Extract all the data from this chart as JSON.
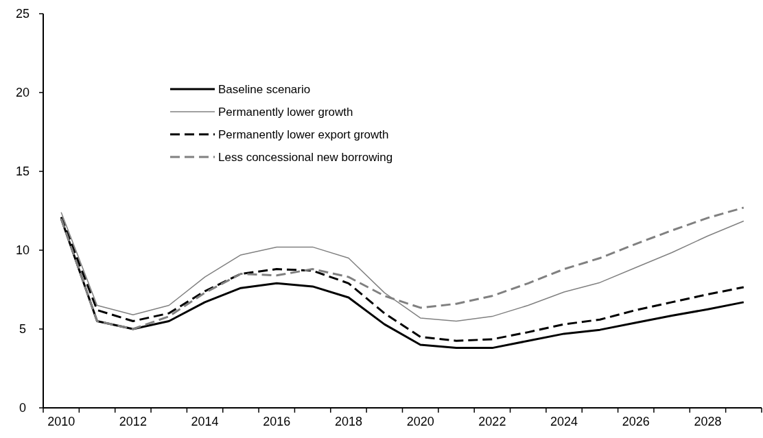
{
  "chart_data": {
    "type": "line",
    "categories": [
      "2010",
      null,
      "2012",
      null,
      "2014",
      null,
      "2016",
      null,
      "2018",
      null,
      "2020",
      null,
      "2022",
      null,
      "2024",
      null,
      "2026",
      null,
      "2028",
      null
    ],
    "ylim": [
      0,
      25
    ],
    "yticks": [
      0,
      5,
      10,
      15,
      20,
      25
    ],
    "grid": false,
    "legend": "top left",
    "marker": "none",
    "series": [
      {
        "name": "Baseline scenario",
        "color": "#000000",
        "line_style": "solid",
        "values": [
          12.0,
          5.5,
          5.0,
          5.5,
          6.7,
          7.6,
          7.9,
          7.7,
          7.0,
          5.3,
          4.0,
          3.8,
          3.8,
          4.25,
          4.7,
          4.95,
          5.4,
          5.85,
          6.25,
          6.7
        ]
      },
      {
        "name": "Permanently lower growth",
        "color": "#808080",
        "line_style": "solid",
        "values": [
          12.4,
          6.5,
          5.9,
          6.5,
          8.3,
          9.7,
          10.2,
          10.2,
          9.5,
          7.3,
          5.7,
          5.5,
          5.8,
          6.5,
          7.35,
          7.95,
          8.9,
          9.85,
          10.9,
          11.85
        ]
      },
      {
        "name": "Permanently lower export growth",
        "color": "#000000",
        "line_style": "dashed",
        "values": [
          12.1,
          6.2,
          5.5,
          6.0,
          7.4,
          8.5,
          8.8,
          8.7,
          7.9,
          6.0,
          4.5,
          4.25,
          4.35,
          4.8,
          5.3,
          5.6,
          6.2,
          6.7,
          7.2,
          7.65
        ]
      },
      {
        "name": "Less concessional new borrowing",
        "color": "#808080",
        "line_style": "dashed",
        "values": [
          12.0,
          5.5,
          5.0,
          5.8,
          7.3,
          8.5,
          8.4,
          8.8,
          8.3,
          7.1,
          6.35,
          6.6,
          7.1,
          7.9,
          8.8,
          9.5,
          10.4,
          11.25,
          12.05,
          12.7
        ]
      }
    ]
  }
}
